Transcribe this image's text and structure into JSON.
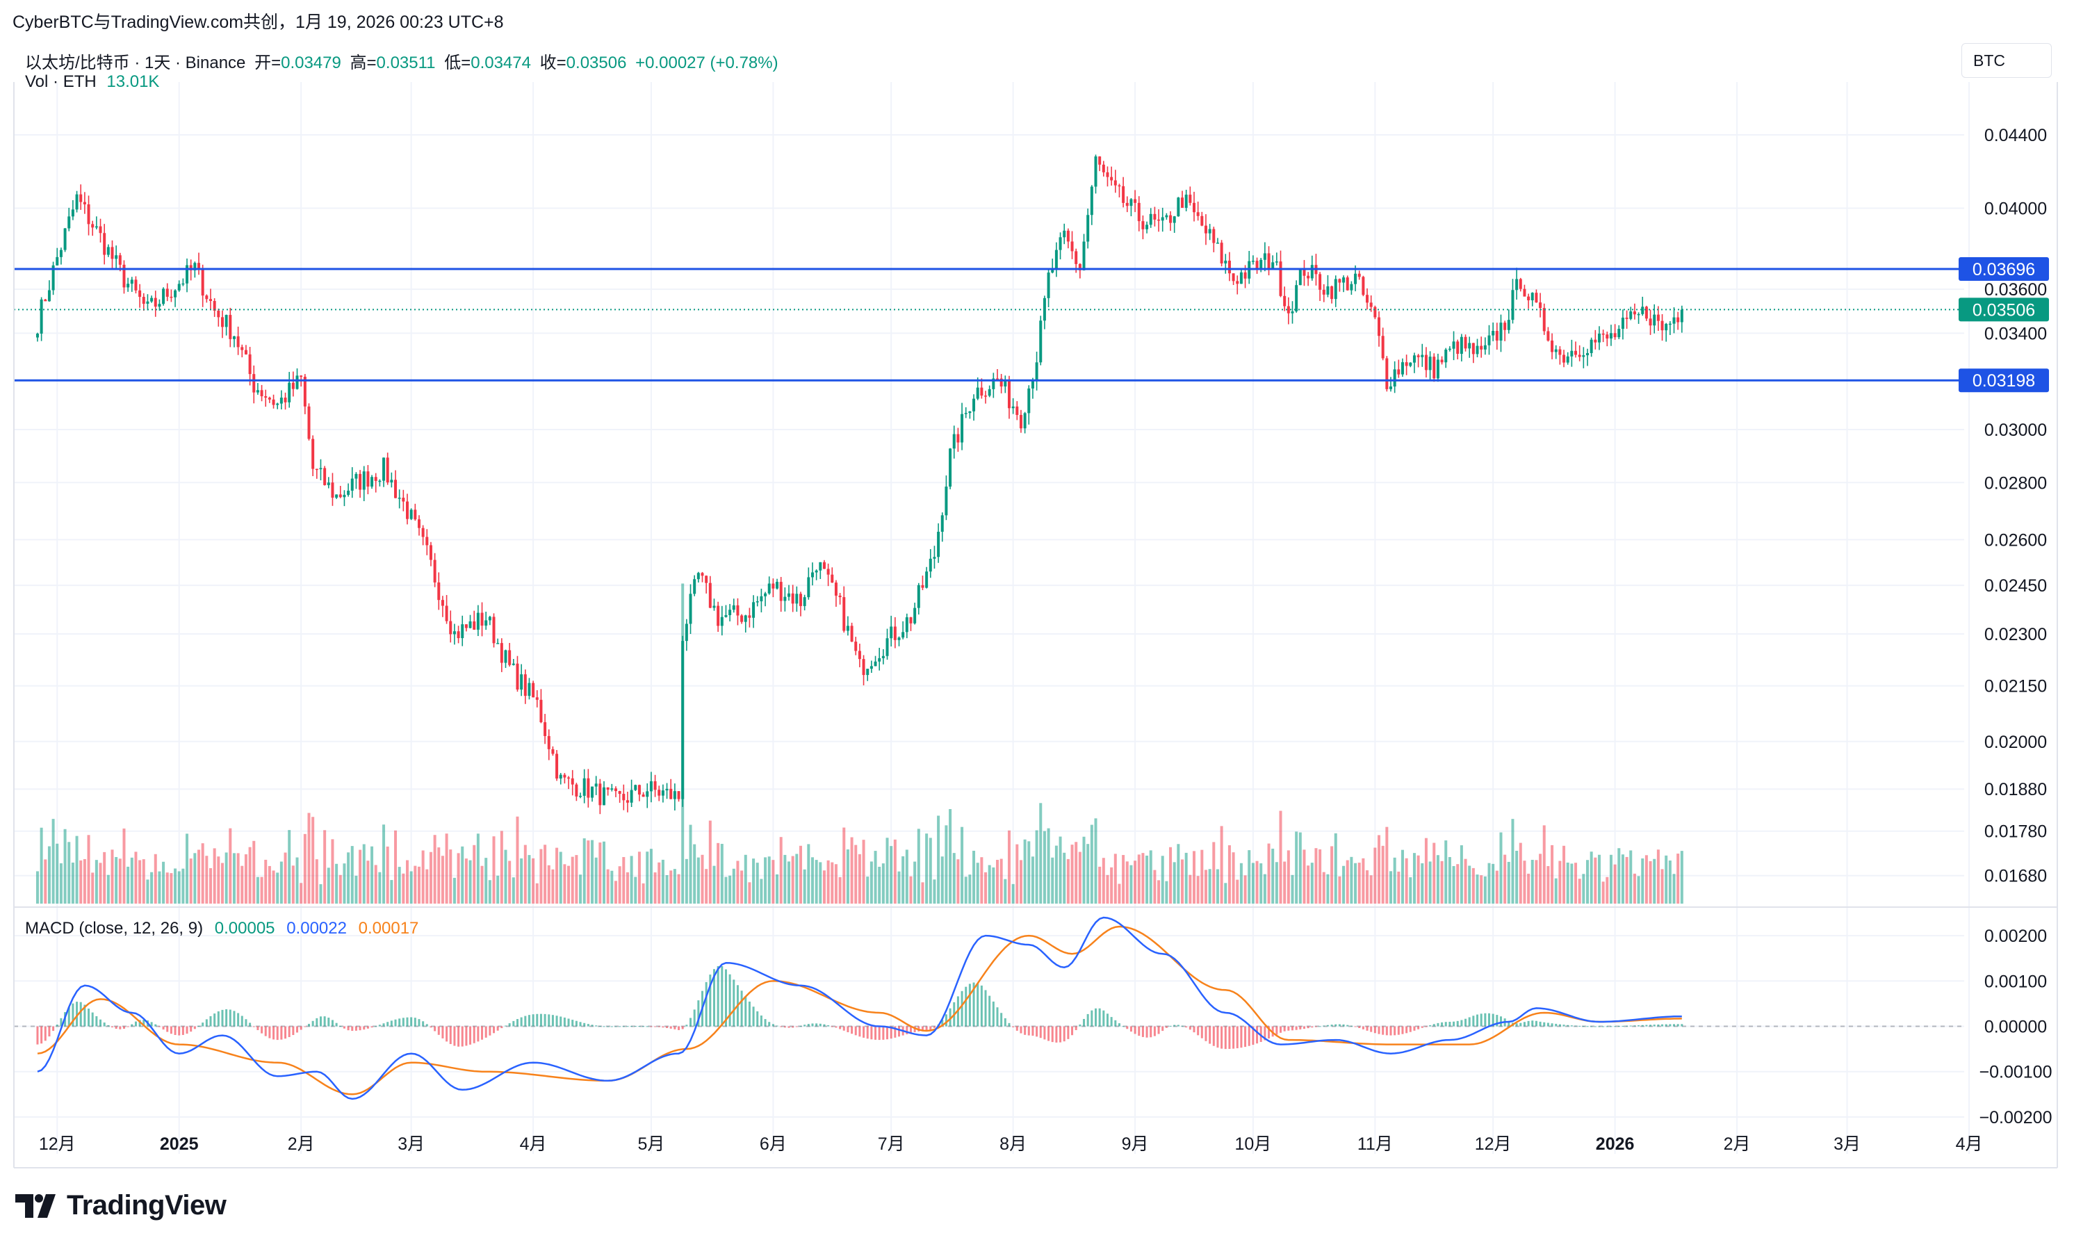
{
  "header": {
    "title": "CyberBTC与TradingView.com共创，1月 19, 2026 00:23 UTC+8"
  },
  "legend": {
    "symbol": "以太坊/比特币 · 1天 · Binance",
    "open_label": "开=",
    "open": "0.03479",
    "high_label": "高=",
    "high": "0.03511",
    "low_label": "低=",
    "low": "0.03474",
    "close_label": "收=",
    "close": "0.03506",
    "change": "+0.00027 (+0.78%)",
    "vol_label": "Vol · ETH",
    "vol_value": "13.01K"
  },
  "currency_button": "BTC",
  "macd_legend": {
    "label": "MACD (close, 12, 26, 9)",
    "hist": "0.00005",
    "macd": "0.00022",
    "signal": "0.00017"
  },
  "branding": {
    "logo_text": "TradingView"
  },
  "colors": {
    "up": "#089981",
    "down": "#f23645",
    "level_line": "#1e53e5",
    "macd": "#2962ff",
    "signal": "#f7821b",
    "grid": "#f0f3fa"
  },
  "chart_data": {
    "type": "candlestick",
    "x_axis": {
      "tick_labels": [
        "12月",
        "2025",
        "2月",
        "3月",
        "4月",
        "5月",
        "6月",
        "7月",
        "8月",
        "9月",
        "10月",
        "11月",
        "12月",
        "2026",
        "2月",
        "3月",
        "4月"
      ]
    },
    "price_axis": {
      "tick_labels": [
        "0.04400",
        "0.04000",
        "0.03600",
        "0.03400",
        "0.03000",
        "0.02800",
        "0.02600",
        "0.02450",
        "0.02300",
        "0.02150",
        "0.02000",
        "0.01880",
        "0.01780",
        "0.01680"
      ],
      "scale": "log",
      "range": [
        0.0162,
        0.0462
      ]
    },
    "horizontal_levels": [
      {
        "value": 0.03696,
        "label": "0.03696"
      },
      {
        "value": 0.03198,
        "label": "0.03198"
      }
    ],
    "last_price": {
      "value": 0.03506,
      "label": "0.03506"
    },
    "price_path": [
      [
        "2024-11-26",
        0.0345
      ],
      [
        "2024-12-01",
        0.0375
      ],
      [
        "2024-12-06",
        0.0405
      ],
      [
        "2024-12-12",
        0.0385
      ],
      [
        "2024-12-18",
        0.0365
      ],
      [
        "2024-12-24",
        0.035
      ],
      [
        "2024-12-30",
        0.036
      ],
      [
        "2025-01-05",
        0.037
      ],
      [
        "2025-01-10",
        0.035
      ],
      [
        "2025-01-15",
        0.034
      ],
      [
        "2025-01-20",
        0.0318
      ],
      [
        "2025-01-26",
        0.031
      ],
      [
        "2025-02-01",
        0.032
      ],
      [
        "2025-02-04",
        0.0285
      ],
      [
        "2025-02-10",
        0.0275
      ],
      [
        "2025-02-15",
        0.028
      ],
      [
        "2025-02-22",
        0.0285
      ],
      [
        "2025-02-28",
        0.027
      ],
      [
        "2025-03-05",
        0.0255
      ],
      [
        "2025-03-12",
        0.023
      ],
      [
        "2025-03-20",
        0.0235
      ],
      [
        "2025-03-26",
        0.022
      ],
      [
        "2025-04-02",
        0.021
      ],
      [
        "2025-04-08",
        0.019
      ],
      [
        "2025-04-15",
        0.0188
      ],
      [
        "2025-04-22",
        0.0185
      ],
      [
        "2025-04-30",
        0.0188
      ],
      [
        "2025-05-08",
        0.0186
      ],
      [
        "2025-05-09",
        0.023
      ],
      [
        "2025-05-13",
        0.0248
      ],
      [
        "2025-05-18",
        0.0235
      ],
      [
        "2025-05-25",
        0.0236
      ],
      [
        "2025-06-01",
        0.0245
      ],
      [
        "2025-06-08",
        0.024
      ],
      [
        "2025-06-12",
        0.0253
      ],
      [
        "2025-06-18",
        0.0238
      ],
      [
        "2025-06-23",
        0.022
      ],
      [
        "2025-06-30",
        0.0228
      ],
      [
        "2025-07-06",
        0.0235
      ],
      [
        "2025-07-12",
        0.0255
      ],
      [
        "2025-07-16",
        0.029
      ],
      [
        "2025-07-22",
        0.0315
      ],
      [
        "2025-07-28",
        0.032
      ],
      [
        "2025-08-03",
        0.0305
      ],
      [
        "2025-08-07",
        0.033
      ],
      [
        "2025-08-10",
        0.0365
      ],
      [
        "2025-08-14",
        0.0385
      ],
      [
        "2025-08-18",
        0.037
      ],
      [
        "2025-08-22",
        0.0425
      ],
      [
        "2025-08-26",
        0.041
      ],
      [
        "2025-09-02",
        0.0395
      ],
      [
        "2025-09-08",
        0.039
      ],
      [
        "2025-09-13",
        0.0405
      ],
      [
        "2025-09-20",
        0.0385
      ],
      [
        "2025-09-26",
        0.0365
      ],
      [
        "2025-10-01",
        0.037
      ],
      [
        "2025-10-06",
        0.0375
      ],
      [
        "2025-10-10",
        0.035
      ],
      [
        "2025-10-14",
        0.037
      ],
      [
        "2025-10-20",
        0.036
      ],
      [
        "2025-10-27",
        0.0365
      ],
      [
        "2025-11-01",
        0.0345
      ],
      [
        "2025-11-04",
        0.032
      ],
      [
        "2025-11-10",
        0.033
      ],
      [
        "2025-11-16",
        0.0325
      ],
      [
        "2025-11-22",
        0.0335
      ],
      [
        "2025-11-28",
        0.033
      ],
      [
        "2025-12-04",
        0.0345
      ],
      [
        "2025-12-08",
        0.0365
      ],
      [
        "2025-12-12",
        0.035
      ],
      [
        "2025-12-18",
        0.033
      ],
      [
        "2025-12-24",
        0.0335
      ],
      [
        "2025-12-31",
        0.0338
      ],
      [
        "2026-01-05",
        0.0345
      ],
      [
        "2026-01-09",
        0.035
      ],
      [
        "2026-01-13",
        0.0342
      ],
      [
        "2026-01-18",
        0.03506
      ]
    ],
    "macd_axis": {
      "tick_labels": [
        "0.00200",
        "0.00100",
        "0.00000",
        "−0.00100",
        "−0.00200"
      ],
      "range": [
        -0.0022,
        0.0024
      ]
    },
    "macd_series": {
      "name": "MACD",
      "points": [
        [
          "2024-11-26",
          -0.001
        ],
        [
          "2024-12-08",
          0.0009
        ],
        [
          "2024-12-20",
          0.0003
        ],
        [
          "2025-01-01",
          -0.0006
        ],
        [
          "2025-01-12",
          -0.0002
        ],
        [
          "2025-01-26",
          -0.0011
        ],
        [
          "2025-02-05",
          -0.001
        ],
        [
          "2025-02-14",
          -0.0016
        ],
        [
          "2025-03-01",
          -0.0006
        ],
        [
          "2025-03-14",
          -0.0014
        ],
        [
          "2025-04-01",
          -0.0008
        ],
        [
          "2025-04-20",
          -0.0012
        ],
        [
          "2025-05-08",
          -0.0006
        ],
        [
          "2025-05-20",
          0.0014
        ],
        [
          "2025-06-08",
          0.0009
        ],
        [
          "2025-06-28",
          0.0
        ],
        [
          "2025-07-10",
          -0.0002
        ],
        [
          "2025-07-25",
          0.002
        ],
        [
          "2025-08-05",
          0.0018
        ],
        [
          "2025-08-14",
          0.0013
        ],
        [
          "2025-08-24",
          0.0024
        ],
        [
          "2025-09-08",
          0.0016
        ],
        [
          "2025-09-24",
          0.0003
        ],
        [
          "2025-10-08",
          -0.0004
        ],
        [
          "2025-10-22",
          -0.0003
        ],
        [
          "2025-11-05",
          -0.0006
        ],
        [
          "2025-11-20",
          -0.0003
        ],
        [
          "2025-12-05",
          0.0001
        ],
        [
          "2025-12-12",
          0.0004
        ],
        [
          "2025-12-28",
          0.0001
        ],
        [
          "2026-01-18",
          0.00022
        ]
      ]
    },
    "signal_series": {
      "name": "Signal",
      "points": [
        [
          "2024-11-26",
          -0.0006
        ],
        [
          "2024-12-12",
          0.0006
        ],
        [
          "2025-01-01",
          -0.0004
        ],
        [
          "2025-01-26",
          -0.0008
        ],
        [
          "2025-02-14",
          -0.0015
        ],
        [
          "2025-03-01",
          -0.0008
        ],
        [
          "2025-03-20",
          -0.001
        ],
        [
          "2025-04-20",
          -0.0012
        ],
        [
          "2025-05-10",
          -0.0005
        ],
        [
          "2025-06-01",
          0.001
        ],
        [
          "2025-06-28",
          0.0003
        ],
        [
          "2025-07-10",
          -0.0001
        ],
        [
          "2025-08-05",
          0.002
        ],
        [
          "2025-08-16",
          0.0016
        ],
        [
          "2025-08-28",
          0.0022
        ],
        [
          "2025-09-24",
          0.0008
        ],
        [
          "2025-10-10",
          -0.0003
        ],
        [
          "2025-11-05",
          -0.0004
        ],
        [
          "2025-11-25",
          -0.0004
        ],
        [
          "2025-12-14",
          0.0003
        ],
        [
          "2025-12-28",
          0.0001
        ],
        [
          "2026-01-18",
          0.00017
        ]
      ]
    }
  }
}
